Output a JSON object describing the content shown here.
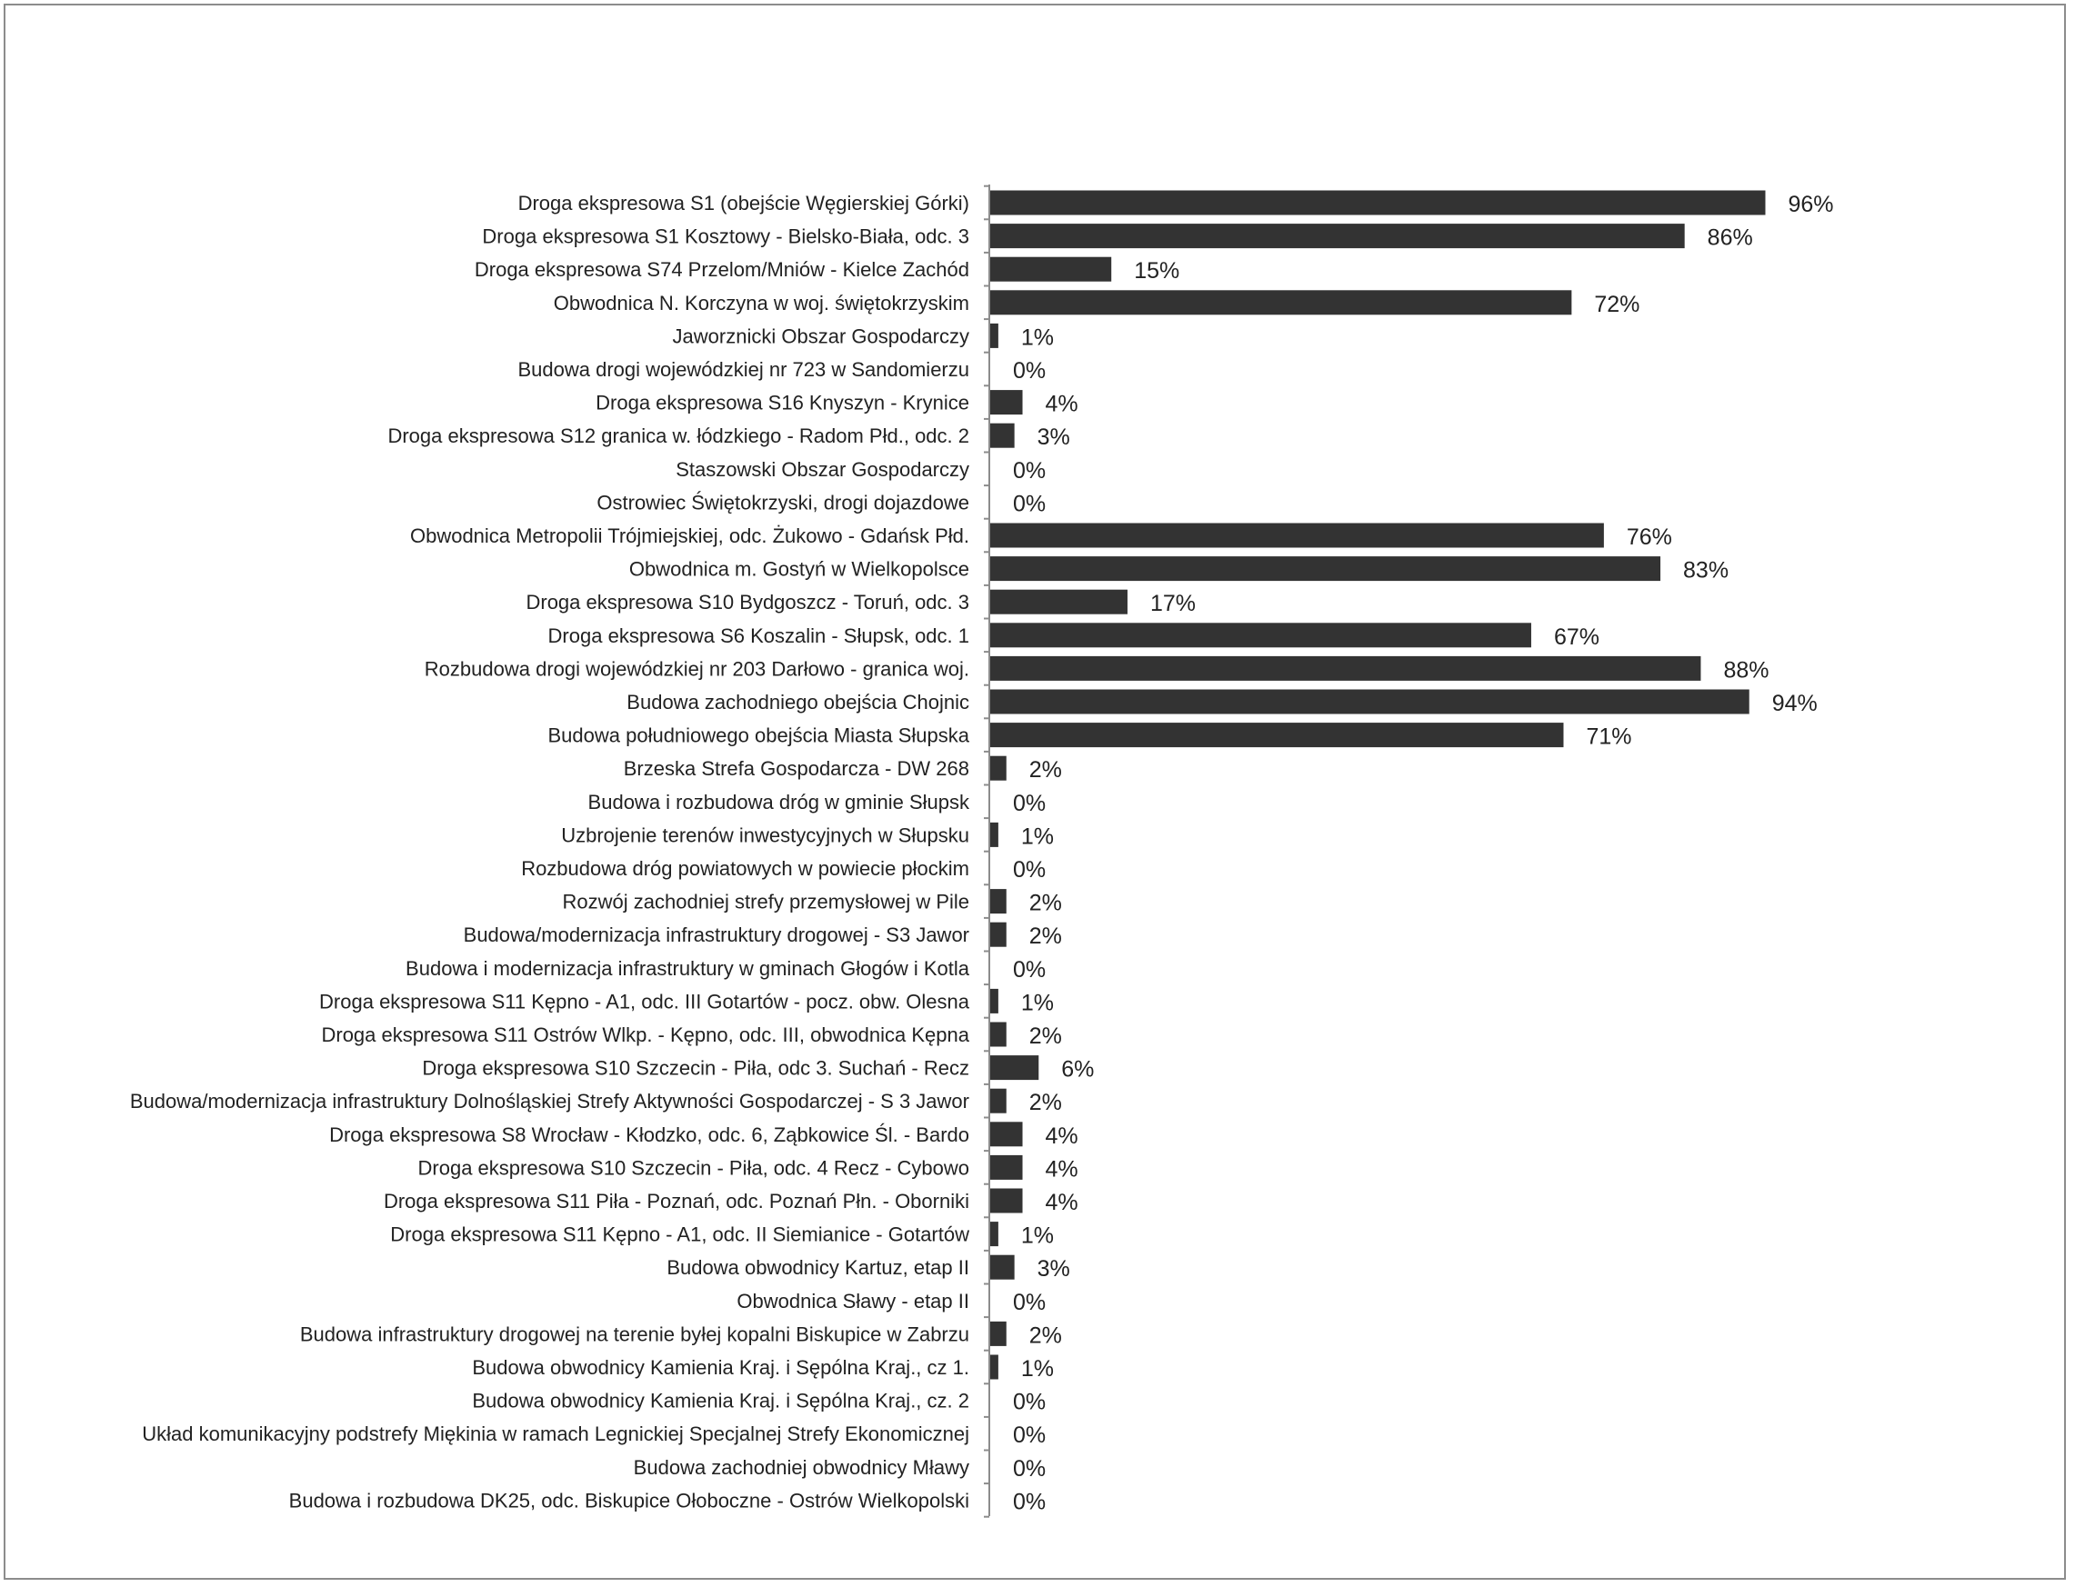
{
  "chart_data": {
    "type": "bar",
    "orientation": "horizontal",
    "title": "",
    "xlabel": "",
    "ylabel": "",
    "xlim": [
      0,
      100
    ],
    "grid": false,
    "legend": "none",
    "bar_color": "#333333",
    "value_suffix": "%",
    "categories": [
      "Droga ekspresowa S1 (obejście Węgierskiej Górki)",
      "Droga ekspresowa S1 Kosztowy - Bielsko-Biała, odc. 3",
      "Droga ekspresowa S74 Przelom/Mniów - Kielce Zachód",
      "Obwodnica N. Korczyna w woj. świętokrzyskim",
      "Jaworznicki Obszar Gospodarczy",
      "Budowa drogi wojewódzkiej nr 723 w Sandomierzu",
      "Droga ekspresowa S16 Knyszyn - Krynice",
      "Droga ekspresowa S12 granica w. łódzkiego - Radom Płd., odc. 2",
      "Staszowski Obszar Gospodarczy",
      "Ostrowiec Świętokrzyski, drogi dojazdowe",
      "Obwodnica Metropolii Trójmiejskiej, odc. Żukowo - Gdańsk Płd.",
      "Obwodnica m. Gostyń w Wielkopolsce",
      "Droga ekspresowa S10 Bydgoszcz - Toruń, odc. 3",
      "Droga ekspresowa S6 Koszalin - Słupsk, odc. 1",
      "Rozbudowa drogi wojewódzkiej nr 203 Darłowo - granica woj.",
      "Budowa zachodniego obejścia Chojnic",
      "Budowa południowego obejścia Miasta Słupska",
      "Brzeska Strefa Gospodarcza - DW 268",
      "Budowa i rozbudowa dróg w gminie Słupsk",
      "Uzbrojenie terenów inwestycyjnych w Słupsku",
      "Rozbudowa dróg powiatowych w powiecie płockim",
      "Rozwój zachodniej strefy przemysłowej w Pile",
      "Budowa/modernizacja infrastruktury drogowej - S3 Jawor",
      "Budowa i modernizacja infrastruktury w gminach Głogów i Kotla",
      "Droga ekspresowa S11 Kępno - A1, odc. III Gotartów - pocz. obw. Olesna",
      "Droga ekspresowa S11 Ostrów Wlkp. - Kępno, odc. III, obwodnica Kępna",
      "Droga ekspresowa S10 Szczecin - Piła, odc 3. Suchań - Recz",
      "Budowa/modernizacja infrastruktury Dolnośląskiej Strefy Aktywności Gospodarczej - S 3 Jawor",
      "Droga ekspresowa S8 Wrocław - Kłodzko, odc. 6, Ząbkowice Śl. - Bardo",
      "Droga ekspresowa S10 Szczecin - Piła, odc. 4 Recz - Cybowo",
      "Droga ekspresowa S11 Piła - Poznań, odc. Poznań Płn. - Oborniki",
      "Droga ekspresowa S11 Kępno - A1, odc. II Siemianice - Gotartów",
      "Budowa obwodnicy Kartuz, etap II",
      "Obwodnica Sławy - etap II",
      "Budowa infrastruktury drogowej na terenie byłej kopalni Biskupice w Zabrzu",
      "Budowa obwodnicy Kamienia Kraj. i Sępólna Kraj., cz 1.",
      "Budowa obwodnicy Kamienia Kraj. i Sępólna Kraj., cz. 2",
      "Układ komunikacyjny podstrefy Miękinia w ramach Legnickiej Specjalnej Strefy Ekonomicznej",
      "Budowa zachodniej obwodnicy Mławy",
      "Budowa i rozbudowa DK25, odc. Biskupice Ołoboczne - Ostrów Wielkopolski"
    ],
    "values": [
      96,
      86,
      15,
      72,
      1,
      0,
      4,
      3,
      0,
      0,
      76,
      83,
      17,
      67,
      88,
      94,
      71,
      2,
      0,
      1,
      0,
      2,
      2,
      0,
      1,
      2,
      6,
      2,
      4,
      4,
      4,
      1,
      3,
      0,
      2,
      1,
      0,
      0,
      0,
      0
    ],
    "value_labels": [
      "96%",
      "86%",
      "15%",
      "72%",
      "1%",
      "0%",
      "4%",
      "3%",
      "0%",
      "0%",
      "76%",
      "83%",
      "17%",
      "67%",
      "88%",
      "94%",
      "71%",
      "2%",
      "0%",
      "1%",
      "0%",
      "2%",
      "2%",
      "0%",
      "1%",
      "2%",
      "6%",
      "2%",
      "4%",
      "4%",
      "4%",
      "1%",
      "3%",
      "0%",
      "2%",
      "1%",
      "0%",
      "0%",
      "0%",
      "0%"
    ]
  }
}
